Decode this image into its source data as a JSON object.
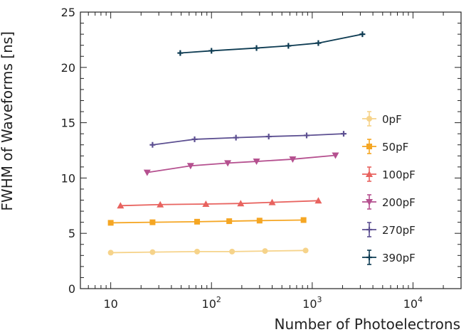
{
  "chart_data": {
    "type": "line",
    "title": "",
    "xlabel": "Number of Photoelectrons",
    "ylabel": "FWHM of Waveforms [ns]",
    "xscale": "log",
    "xlim": [
      5,
      30000
    ],
    "ylim": [
      0,
      25
    ],
    "x_ticks": [
      {
        "value": 10,
        "base": "10",
        "exp": ""
      },
      {
        "value": 100,
        "base": "10",
        "exp": "2"
      },
      {
        "value": 1000,
        "base": "10",
        "exp": "3"
      },
      {
        "value": 10000,
        "base": "10",
        "exp": "4"
      }
    ],
    "y_ticks": [
      0,
      5,
      10,
      15,
      20,
      25
    ],
    "legend_position": "right",
    "series": [
      {
        "name": "0pF",
        "color": "#f6d38a",
        "marker": "circle",
        "x": [
          10,
          26,
          72,
          160,
          340,
          860
        ],
        "y": [
          3.25,
          3.3,
          3.35,
          3.35,
          3.4,
          3.45
        ]
      },
      {
        "name": "50pF",
        "color": "#f5a623",
        "marker": "square",
        "x": [
          10,
          26,
          72,
          150,
          300,
          820
        ],
        "y": [
          5.95,
          6.0,
          6.05,
          6.1,
          6.15,
          6.2
        ]
      },
      {
        "name": "100pF",
        "color": "#e8635f",
        "marker": "triangle-up",
        "x": [
          12.5,
          31,
          88,
          195,
          400,
          1150
        ],
        "y": [
          7.5,
          7.6,
          7.65,
          7.7,
          7.8,
          7.95
        ]
      },
      {
        "name": "200pF",
        "color": "#b5508f",
        "marker": "triangle-down",
        "x": [
          23,
          62,
          145,
          280,
          640,
          1700
        ],
        "y": [
          10.5,
          11.1,
          11.35,
          11.5,
          11.7,
          12.05
        ]
      },
      {
        "name": "270pF",
        "color": "#5c4f91",
        "marker": "plus",
        "x": [
          26,
          68,
          175,
          370,
          880,
          2050
        ],
        "y": [
          13.0,
          13.5,
          13.65,
          13.75,
          13.85,
          14.0
        ]
      },
      {
        "name": "390pF",
        "color": "#0d3b52",
        "marker": "plus",
        "x": [
          49,
          100,
          280,
          580,
          1150,
          3150
        ],
        "y": [
          21.3,
          21.5,
          21.75,
          21.95,
          22.2,
          23.0
        ]
      }
    ]
  }
}
